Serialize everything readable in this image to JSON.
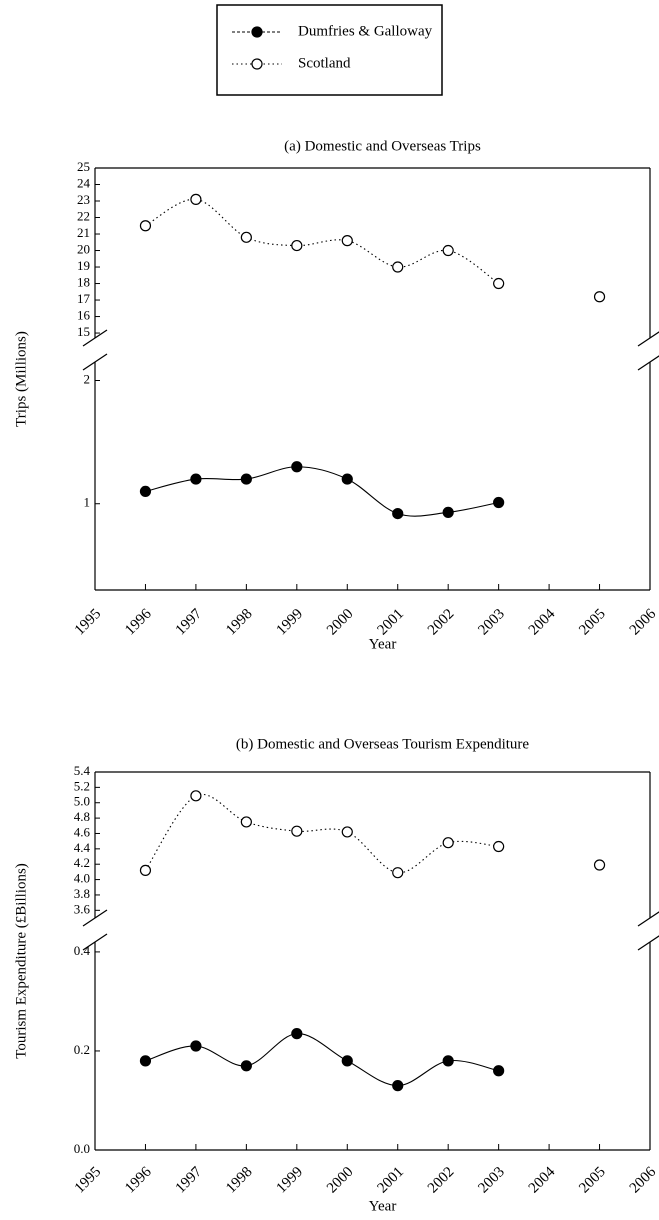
{
  "chart_data": [
    {
      "type": "line",
      "title": "(a) Domestic and Overseas Trips",
      "ylabel": "Trips (Millions)",
      "xlabel": "Year",
      "x": [
        1996,
        1997,
        1998,
        1999,
        2000,
        2001,
        2002,
        2003,
        2004,
        2005
      ],
      "xlim": [
        1995,
        2006
      ],
      "xticks": [
        1995,
        1996,
        1997,
        1998,
        1999,
        2000,
        2001,
        2002,
        2003,
        2004,
        2005,
        2006
      ],
      "ylim": [
        0.3,
        2.15
      ],
      "yticks": [
        1,
        2
      ],
      "y2lim": [
        14.7,
        25
      ],
      "y2ticks": [
        15,
        16,
        17,
        18,
        19,
        20,
        21,
        22,
        23,
        24,
        25
      ],
      "series": [
        {
          "name": "Dumfries & Galloway",
          "color": "#000000",
          "marker": "filled",
          "line_style": "solid",
          "values": [
            1.1,
            1.2,
            1.2,
            1.3,
            1.2,
            0.92,
            0.93,
            1.01,
            null,
            null
          ]
        },
        {
          "name": "Scotland",
          "color": "#000000",
          "marker": "open",
          "line_style": "dotted",
          "axis": "y2",
          "values": [
            21.5,
            23.1,
            20.8,
            20.3,
            20.6,
            19.0,
            20.0,
            18.0,
            null,
            17.2
          ]
        }
      ]
    },
    {
      "type": "line",
      "title": "(b) Domestic and Overseas Tourism Expenditure",
      "ylabel": "Tourism Expenditure (£Billions)",
      "xlabel": "Year",
      "x": [
        1996,
        1997,
        1998,
        1999,
        2000,
        2001,
        2002,
        2003,
        2004,
        2005
      ],
      "xlim": [
        1995,
        2006
      ],
      "xticks": [
        1995,
        1996,
        1997,
        1998,
        1999,
        2000,
        2001,
        2002,
        2003,
        2004,
        2005,
        2006
      ],
      "ylim": [
        0,
        0.42
      ],
      "yticks": [
        {
          "value": 0,
          "label": "0.0"
        },
        0.2,
        0.4
      ],
      "y2lim": [
        3.5,
        5.4
      ],
      "y2ticks": [
        3.6,
        3.8,
        {
          "value": 4,
          "label": "4.0"
        },
        4.2,
        4.4,
        4.6,
        4.8,
        {
          "value": 5,
          "label": "5.0"
        },
        5.2,
        5.4
      ],
      "series": [
        {
          "name": "Dumfries & Galloway",
          "color": "#000000",
          "marker": "filled",
          "line_style": "solid",
          "values": [
            0.18,
            0.21,
            0.17,
            0.235,
            0.18,
            0.13,
            0.18,
            0.16,
            null,
            null
          ]
        },
        {
          "name": "Scotland",
          "color": "#000000",
          "marker": "open",
          "line_style": "dotted",
          "axis": "y2",
          "values": [
            4.12,
            5.09,
            4.75,
            4.63,
            4.62,
            4.09,
            4.48,
            4.43,
            null,
            4.19
          ]
        }
      ]
    }
  ]
}
